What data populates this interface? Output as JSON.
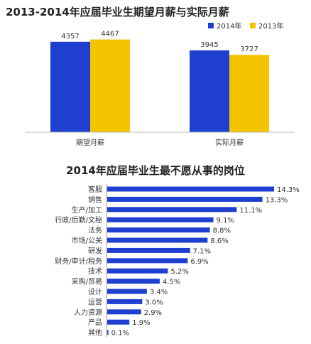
{
  "chart_data": [
    {
      "type": "bar",
      "title": "2013-2014年应届毕业生期望月薪与实际月薪",
      "categories": [
        "期望月薪",
        "实际月薪"
      ],
      "series": [
        {
          "name": "2014年",
          "values": [
            4357,
            3945
          ],
          "color": "#1f3fd1"
        },
        {
          "name": "2013年",
          "values": [
            4467,
            3727
          ],
          "color": "#f5c400"
        }
      ],
      "ylim": [
        0,
        5000
      ],
      "legend": "top-right",
      "grid": false
    },
    {
      "type": "bar",
      "orientation": "horizontal",
      "title": "2014年应届毕业生最不愿从事的岗位",
      "categories": [
        "客服",
        "销售",
        "生产/加工",
        "行政/后勤/文秘",
        "法务",
        "市场/公关",
        "研发",
        "财务/审计/税务",
        "技术",
        "采购/贸易",
        "设计",
        "运营",
        "人力资源",
        "产品",
        "其他"
      ],
      "values": [
        14.3,
        13.3,
        11.1,
        9.1,
        8.8,
        8.6,
        7.1,
        6.9,
        5.2,
        4.5,
        3.4,
        3.0,
        2.9,
        1.9,
        0.1
      ],
      "value_labels": [
        "14.3%",
        "13.3%",
        "11.1%",
        "9.1%",
        "8.8%",
        "8.6%",
        "7.1%",
        "6.9%",
        "5.2%",
        "4.5%",
        "3.4%",
        "3.0%",
        "2.9%",
        "1.9%",
        "0.1%"
      ],
      "xlim": [
        0,
        14.3
      ],
      "color": "#1f3fd1",
      "grid": false
    }
  ]
}
